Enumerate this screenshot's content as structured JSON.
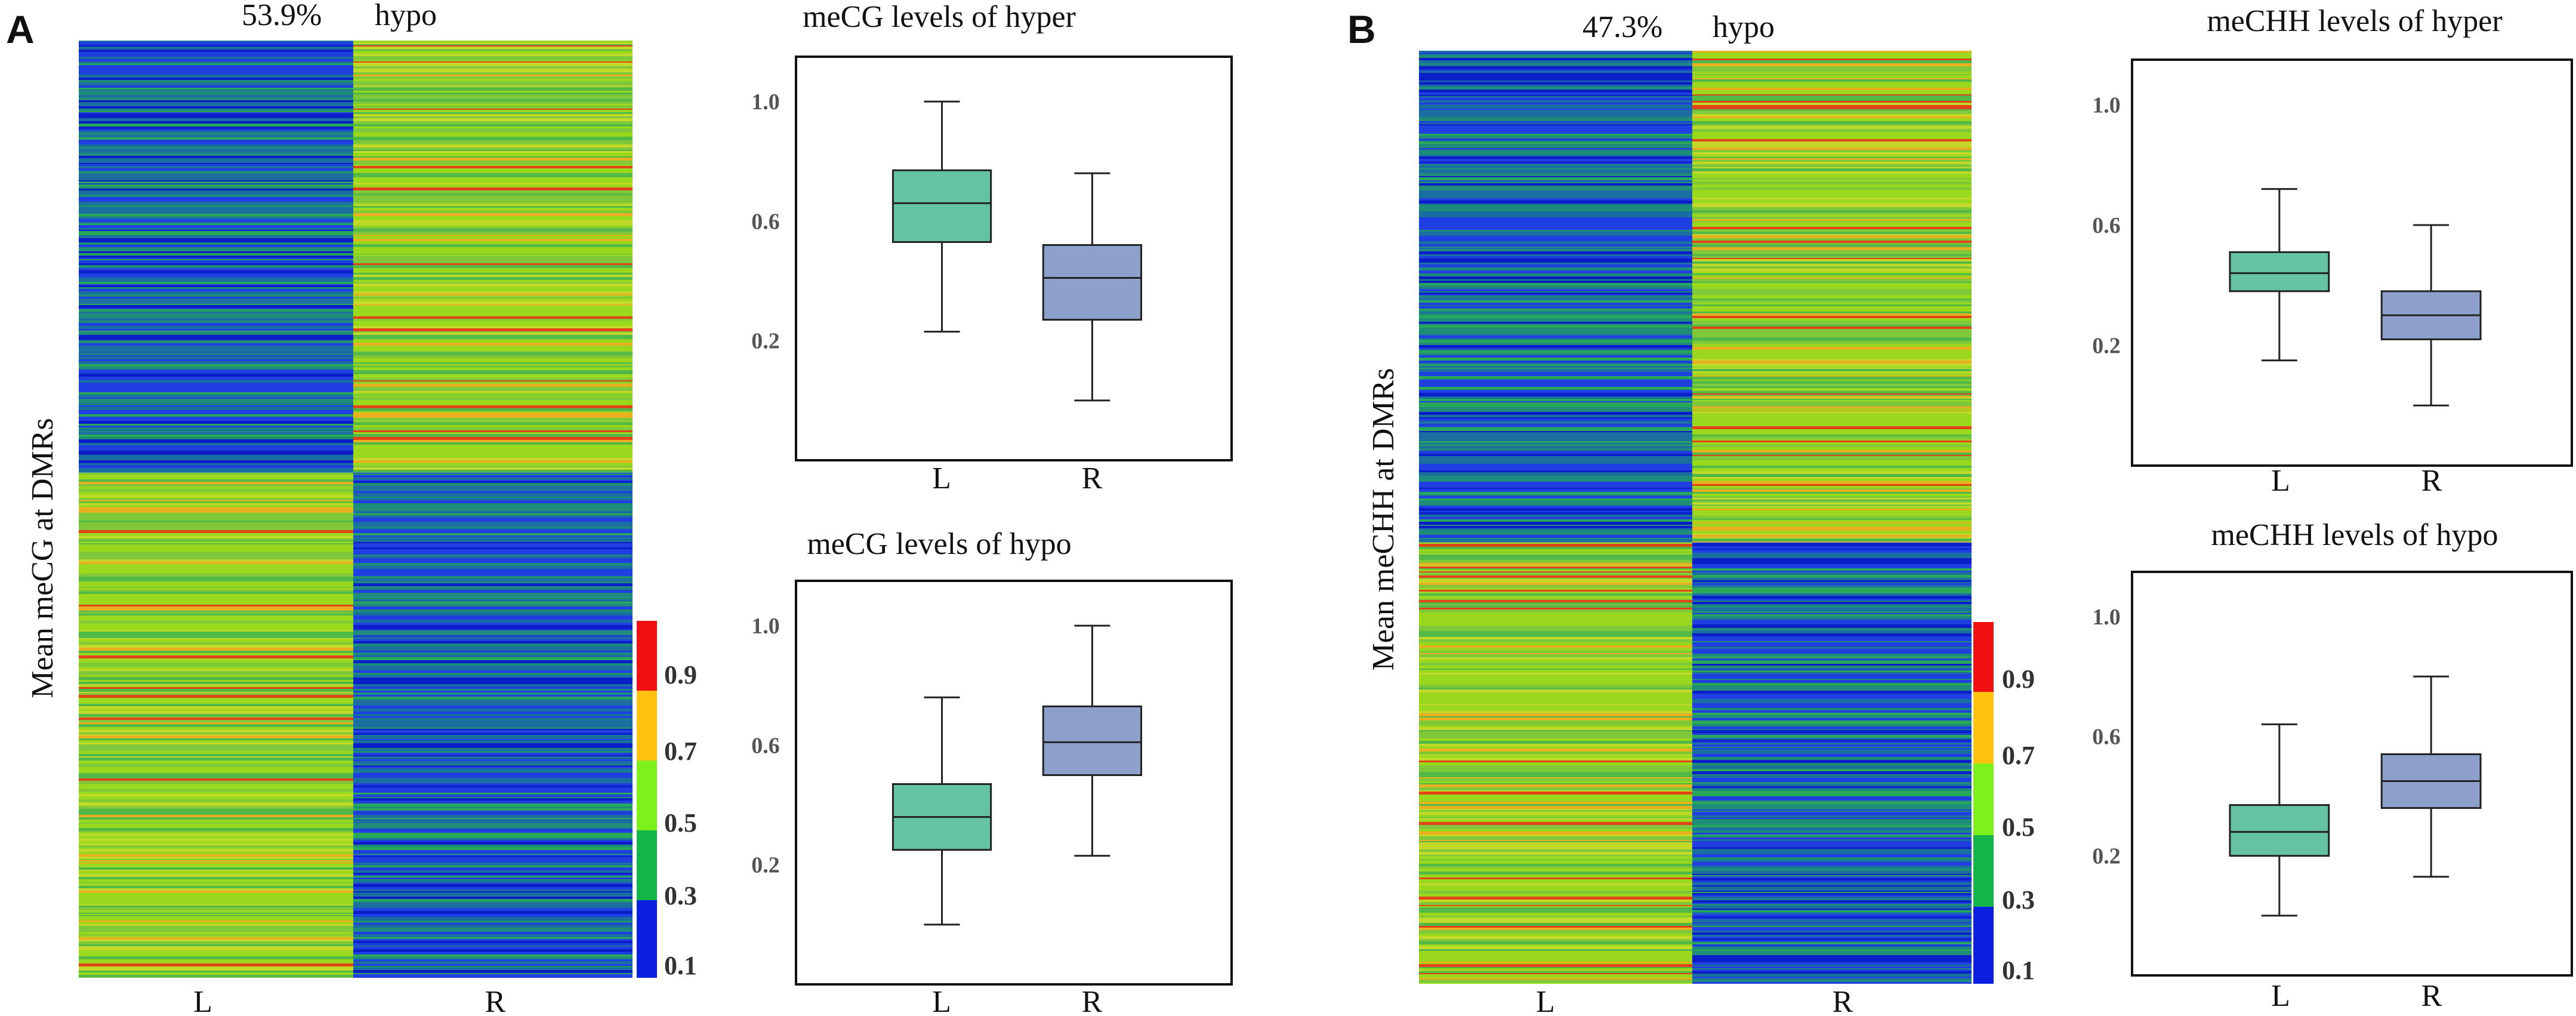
{
  "colors": {
    "L_box": "#66c2a5",
    "R_box": "#8da0cb",
    "colorbar": [
      "#0b1fe0",
      "#12b548",
      "#7ef01a",
      "#ffc20e",
      "#f01010"
    ]
  },
  "colorbar": {
    "ticks": [
      "0.1",
      "0.3",
      "0.5",
      "0.7",
      "0.9"
    ]
  },
  "panels": [
    {
      "letter": "A",
      "heatmap": {
        "header_pct": "53.9%",
        "header_label": "hypo",
        "ylabel": "Mean meCG at DMRs",
        "columns": [
          "L",
          "R"
        ],
        "hypo_fraction": 0.539,
        "segments": [
          {
            "start": 0.0,
            "end": 0.461,
            "L": "low",
            "R": "high"
          },
          {
            "start": 0.461,
            "end": 1.0,
            "L": "high",
            "R": "low"
          }
        ]
      },
      "boxplots": [
        {
          "title": "meCG levels of hyper",
          "categories": [
            "L",
            "R"
          ],
          "yticks": [
            "1.0",
            "0.6",
            "0.2"
          ],
          "ylim": [
            -0.2,
            1.15
          ],
          "L": {
            "whislo": 0.23,
            "q1": 0.53,
            "med": 0.66,
            "q3": 0.77,
            "whishi": 1.0
          },
          "R": {
            "whislo": 0.0,
            "q1": 0.27,
            "med": 0.41,
            "q3": 0.52,
            "whishi": 0.76
          }
        },
        {
          "title": "meCG levels of hypo",
          "categories": [
            "L",
            "R"
          ],
          "yticks": [
            "1.0",
            "0.6",
            "0.2"
          ],
          "ylim": [
            -0.2,
            1.15
          ],
          "L": {
            "whislo": 0.0,
            "q1": 0.25,
            "med": 0.36,
            "q3": 0.47,
            "whishi": 0.76
          },
          "R": {
            "whislo": 0.23,
            "q1": 0.5,
            "med": 0.61,
            "q3": 0.73,
            "whishi": 1.0
          }
        }
      ]
    },
    {
      "letter": "B",
      "heatmap": {
        "header_pct": "47.3%",
        "header_label": "hypo",
        "ylabel": "Mean meCHH at DMRs",
        "columns": [
          "L",
          "R"
        ],
        "hypo_fraction": 0.473,
        "segments": [
          {
            "start": 0.0,
            "end": 0.527,
            "L": "low",
            "R": "high"
          },
          {
            "start": 0.527,
            "end": 1.0,
            "L": "high",
            "R": "low"
          }
        ]
      },
      "boxplots": [
        {
          "title": "meCHH levels of hyper",
          "categories": [
            "L",
            "R"
          ],
          "yticks": [
            "1.0",
            "0.6",
            "0.2"
          ],
          "ylim": [
            -0.2,
            1.15
          ],
          "L": {
            "whislo": 0.15,
            "q1": 0.38,
            "med": 0.44,
            "q3": 0.51,
            "whishi": 0.72
          },
          "R": {
            "whislo": 0.0,
            "q1": 0.22,
            "med": 0.3,
            "q3": 0.38,
            "whishi": 0.6
          }
        },
        {
          "title": "meCHH levels of hypo",
          "categories": [
            "L",
            "R"
          ],
          "yticks": [
            "1.0",
            "0.6",
            "0.2"
          ],
          "ylim": [
            -0.2,
            1.15
          ],
          "L": {
            "whislo": 0.0,
            "q1": 0.2,
            "med": 0.28,
            "q3": 0.37,
            "whishi": 0.64
          },
          "R": {
            "whislo": 0.13,
            "q1": 0.36,
            "med": 0.45,
            "q3": 0.54,
            "whishi": 0.8
          }
        }
      ]
    }
  ],
  "chart_data": [
    {
      "type": "heatmap",
      "title": "53.9% hypo",
      "ylabel": "Mean meCG at DMRs",
      "columns": [
        "L",
        "R"
      ],
      "colorbar_ticks": [
        0.1,
        0.3,
        0.5,
        0.7,
        0.9
      ]
    },
    {
      "type": "box",
      "title": "meCG levels of hyper",
      "categories": [
        "L",
        "R"
      ],
      "ylim": [
        -0.2,
        1.15
      ],
      "series": [
        {
          "name": "L",
          "whislo": 0.23,
          "q1": 0.53,
          "med": 0.66,
          "q3": 0.77,
          "whishi": 1.0
        },
        {
          "name": "R",
          "whislo": 0.0,
          "q1": 0.27,
          "med": 0.41,
          "q3": 0.52,
          "whishi": 0.76
        }
      ]
    },
    {
      "type": "box",
      "title": "meCG levels of hypo",
      "categories": [
        "L",
        "R"
      ],
      "ylim": [
        -0.2,
        1.15
      ],
      "series": [
        {
          "name": "L",
          "whislo": 0.0,
          "q1": 0.25,
          "med": 0.36,
          "q3": 0.47,
          "whishi": 0.76
        },
        {
          "name": "R",
          "whislo": 0.23,
          "q1": 0.5,
          "med": 0.61,
          "q3": 0.73,
          "whishi": 1.0
        }
      ]
    },
    {
      "type": "heatmap",
      "title": "47.3% hypo",
      "ylabel": "Mean meCHH at DMRs",
      "columns": [
        "L",
        "R"
      ],
      "colorbar_ticks": [
        0.1,
        0.3,
        0.5,
        0.7,
        0.9
      ]
    },
    {
      "type": "box",
      "title": "meCHH levels of hyper",
      "categories": [
        "L",
        "R"
      ],
      "ylim": [
        -0.2,
        1.15
      ],
      "series": [
        {
          "name": "L",
          "whislo": 0.15,
          "q1": 0.38,
          "med": 0.44,
          "q3": 0.51,
          "whishi": 0.72
        },
        {
          "name": "R",
          "whislo": 0.0,
          "q1": 0.22,
          "med": 0.3,
          "q3": 0.38,
          "whishi": 0.6
        }
      ]
    },
    {
      "type": "box",
      "title": "meCHH levels of hypo",
      "categories": [
        "L",
        "R"
      ],
      "ylim": [
        -0.2,
        1.15
      ],
      "series": [
        {
          "name": "L",
          "whislo": 0.0,
          "q1": 0.2,
          "med": 0.28,
          "q3": 0.37,
          "whishi": 0.64
        },
        {
          "name": "R",
          "whislo": 0.13,
          "q1": 0.36,
          "med": 0.45,
          "q3": 0.54,
          "whishi": 0.8
        }
      ]
    }
  ]
}
